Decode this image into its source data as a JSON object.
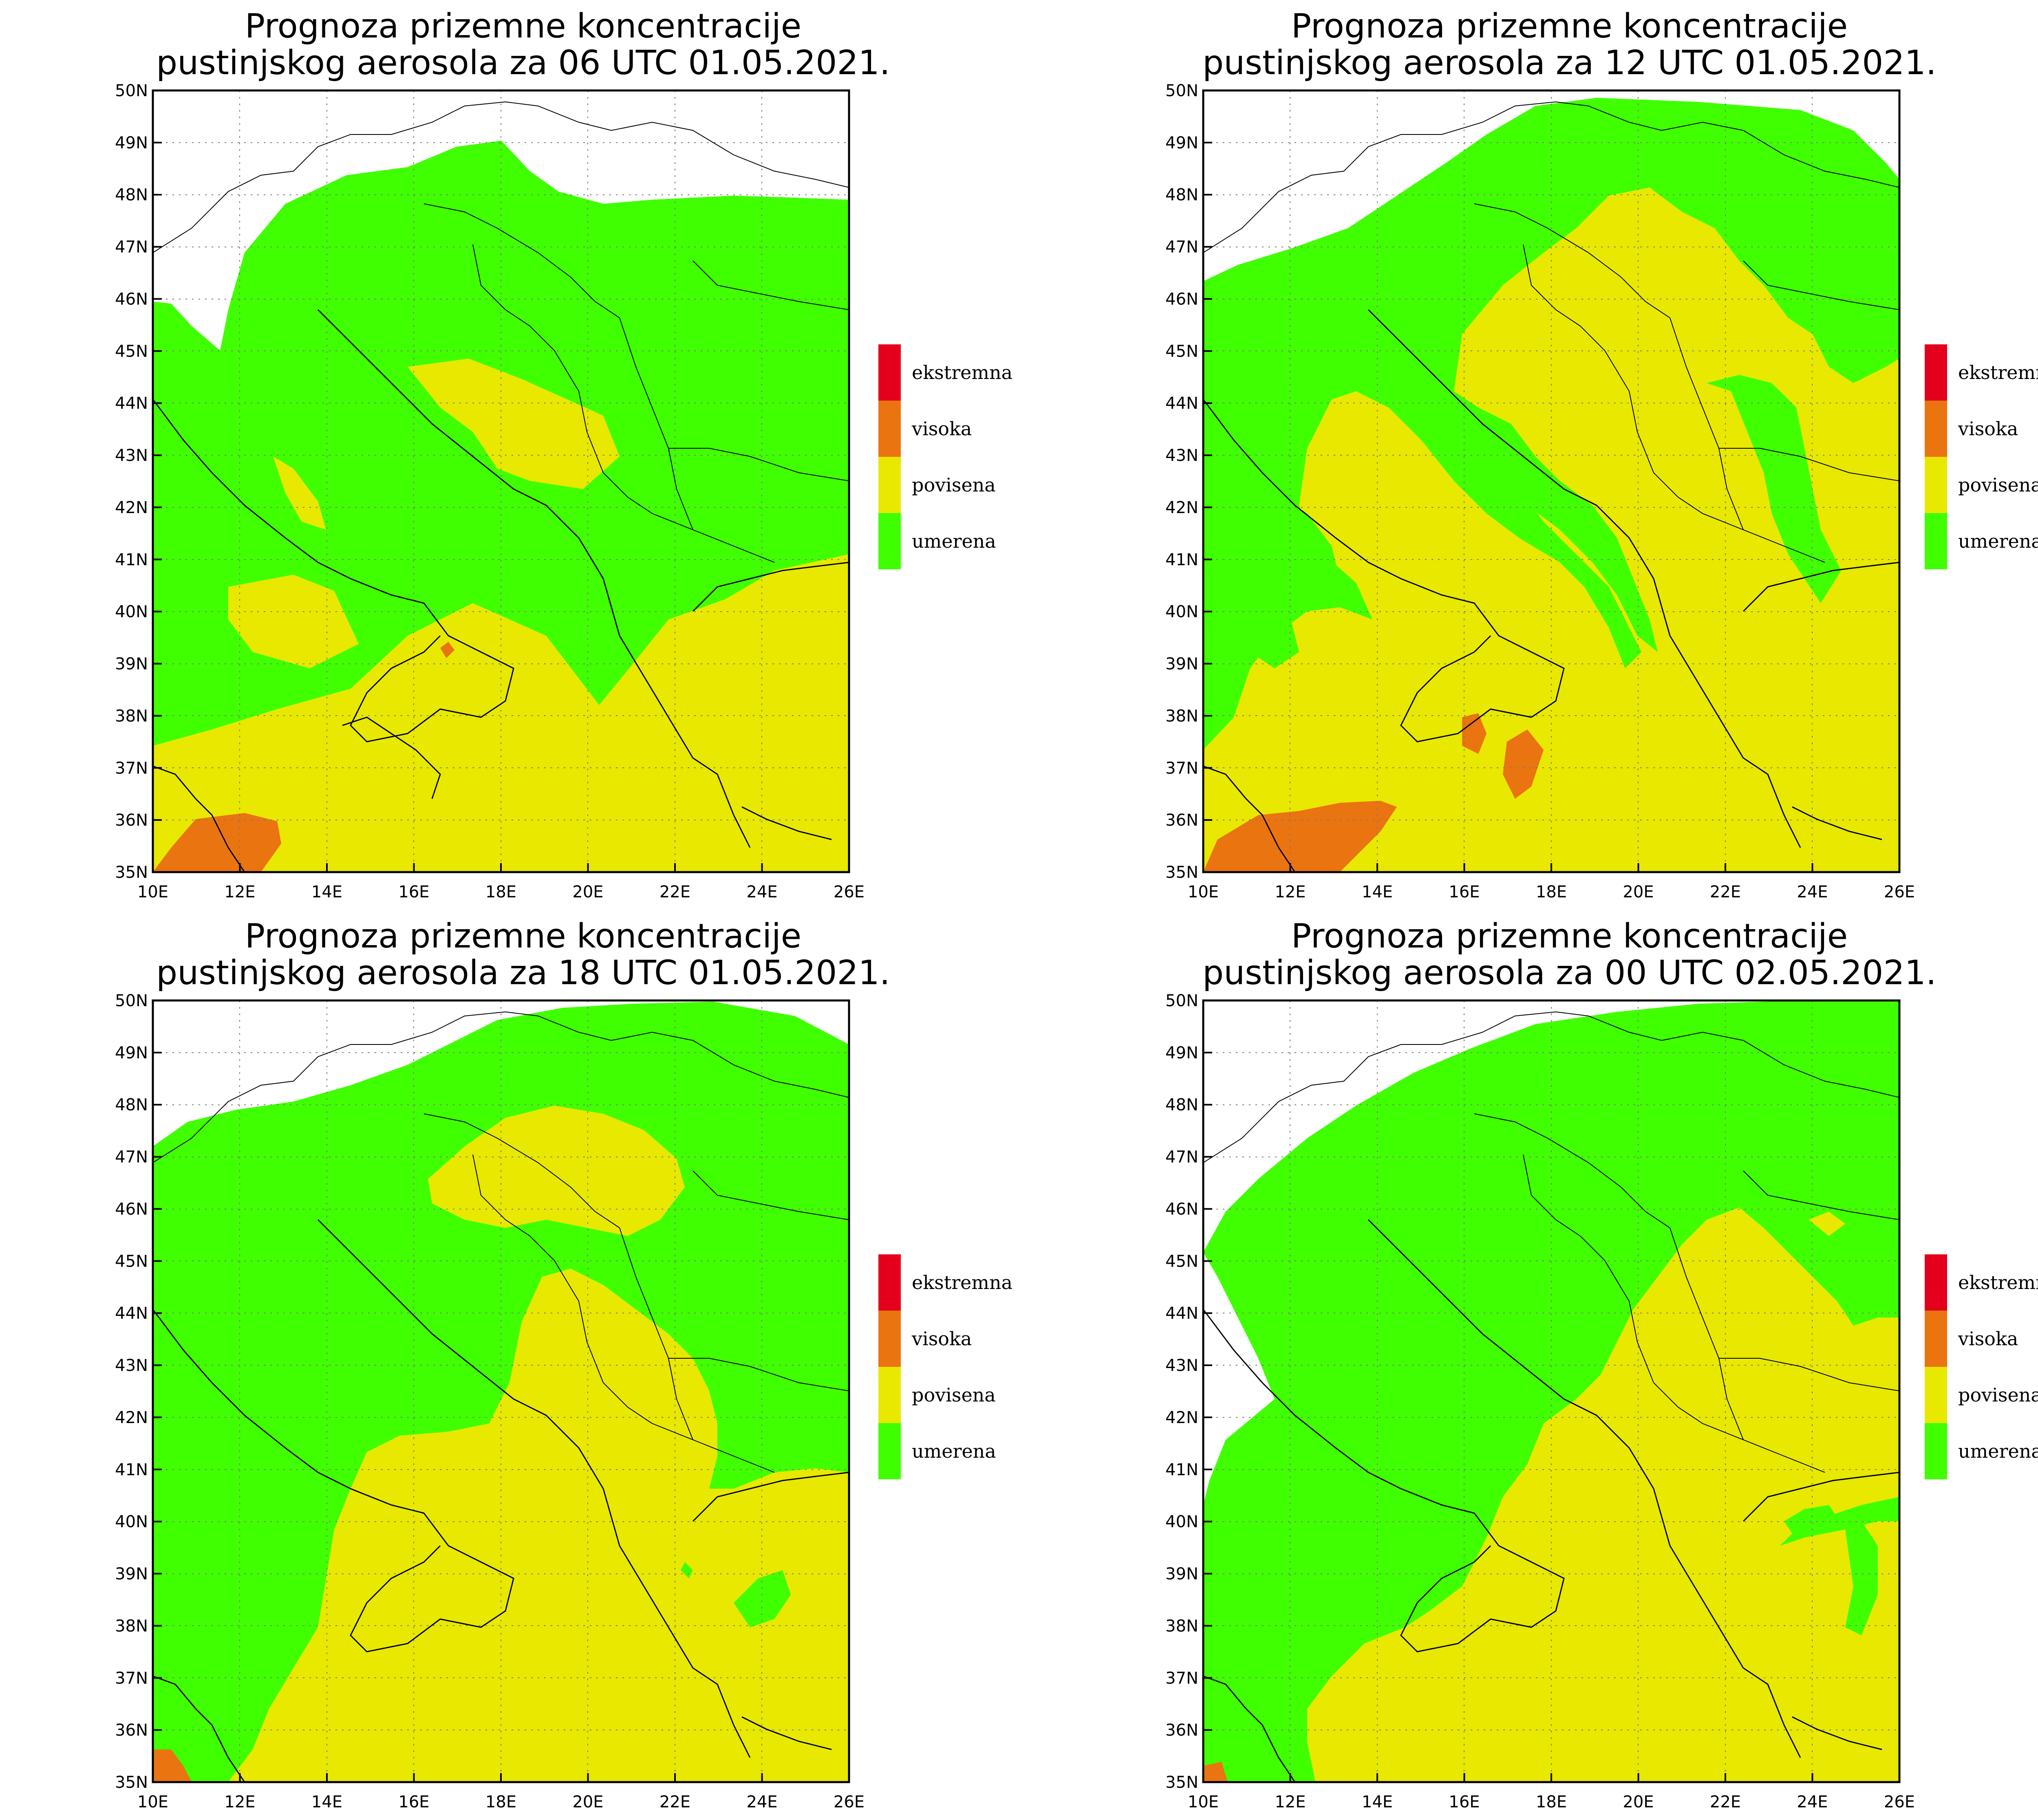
{
  "map": {
    "lon_ticks": [
      "10E",
      "12E",
      "14E",
      "16E",
      "18E",
      "20E",
      "22E",
      "24E",
      "26E"
    ],
    "lat_ticks": [
      "35N",
      "36N",
      "37N",
      "38N",
      "39N",
      "40N",
      "41N",
      "42N",
      "43N",
      "44N",
      "45N",
      "46N",
      "47N",
      "48N",
      "49N",
      "50N"
    ]
  },
  "legend": [
    {
      "label": "ekstremna",
      "color": "#e4001c"
    },
    {
      "label": "visoka",
      "color": "#ea7410"
    },
    {
      "label": "povisena",
      "color": "#e8e800"
    },
    {
      "label": "umerena",
      "color": "#40ff00"
    }
  ],
  "panels": [
    {
      "title_line1": "Prognoza prizemne koncentracije",
      "title_line2": "pustinjskog aerosola za 06 UTC 01.05.2021."
    },
    {
      "title_line1": "Prognoza prizemne koncentracije",
      "title_line2": "pustinjskog aerosola za 12 UTC 01.05.2021."
    },
    {
      "title_line1": "Prognoza prizemne koncentracije",
      "title_line2": "pustinjskog aerosola za 18 UTC 01.05.2021."
    },
    {
      "title_line1": "Prognoza prizemne koncentracije",
      "title_line2": "pustinjskog aerosola za 00 UTC 02.05.2021."
    }
  ]
}
